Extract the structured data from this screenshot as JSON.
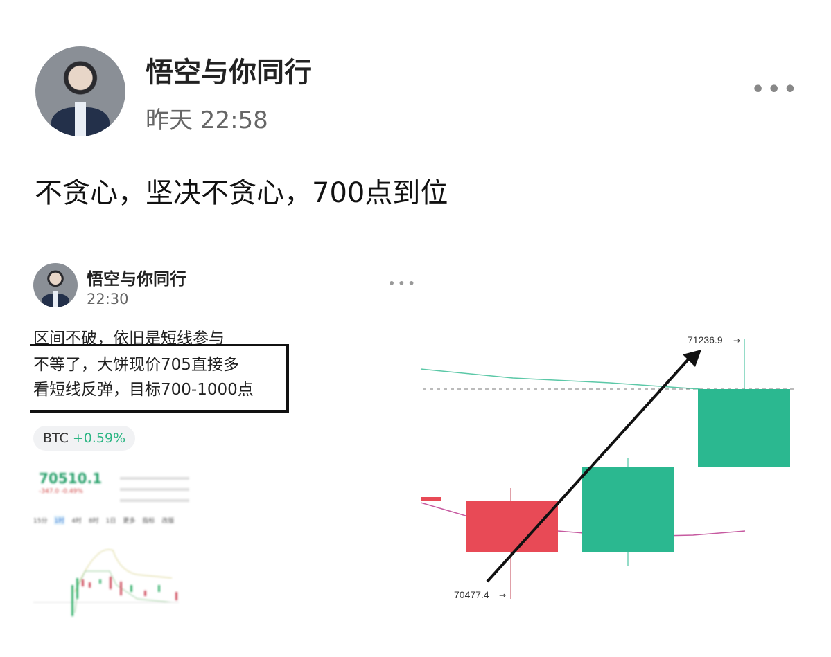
{
  "post": {
    "author": "悟空与你同行",
    "time": "昨天 22:58",
    "text": "不贪心，坚决不贪心，700点到位",
    "more_icon": "more-dots-icon"
  },
  "embedded": {
    "author": "悟空与你同行",
    "time": "22:30",
    "lines": [
      "区间不破，依旧是短线参与",
      "不等了，大饼现价705直接多",
      "看短线反弹，目标700-1000点"
    ],
    "ticker": {
      "symbol": "BTC",
      "change": "+0.59%",
      "color": "#2bb583"
    },
    "mini": {
      "price": "70510.1",
      "change_abs": "-347.0",
      "change_pct": "-0.49%",
      "intervals": [
        "15分",
        "1时",
        "4时",
        "8时",
        "1日",
        "更多",
        "指标",
        "改版"
      ],
      "selected_interval": "1时"
    }
  },
  "chart_data": {
    "type": "candlestick",
    "annotations": {
      "high_label": "71236.9",
      "low_label": "70477.4"
    },
    "candles": [
      {
        "direction": "down",
        "color": "#e84a56"
      },
      {
        "direction": "up",
        "color": "#2bb890"
      },
      {
        "direction": "up",
        "color": "#2bb890"
      }
    ],
    "arrow": "up"
  }
}
